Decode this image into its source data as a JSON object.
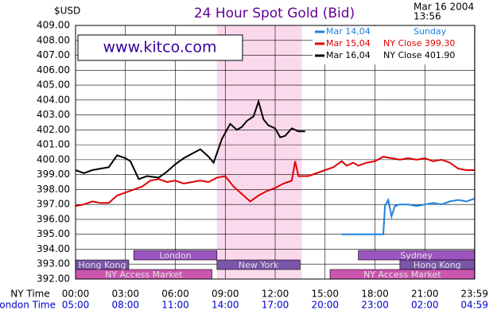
{
  "chart_data": {
    "type": "line",
    "title": "24 Hour Spot Gold (Bid)",
    "y_unit": "$USD",
    "date": "Mar 16 2004",
    "time": "13:56",
    "watermark": "www.kitco.com",
    "x_row_label": "NY Time",
    "x2_row_label": "London Time",
    "xlim": [
      0,
      24
    ],
    "xticks": [
      {
        "value": 0,
        "label": "00:00"
      },
      {
        "value": 3,
        "label": "03:00"
      },
      {
        "value": 6,
        "label": "06:00"
      },
      {
        "value": 9,
        "label": "09:00"
      },
      {
        "value": 12,
        "label": "12:00"
      },
      {
        "value": 15,
        "label": "15:00"
      },
      {
        "value": 18,
        "label": "18:00"
      },
      {
        "value": 21,
        "label": "21:00"
      },
      {
        "value": 23.983,
        "label": "23:59"
      }
    ],
    "x2ticks": [
      {
        "value": 0,
        "label": "05:00"
      },
      {
        "value": 3,
        "label": "08:00"
      },
      {
        "value": 6,
        "label": "11:00"
      },
      {
        "value": 9,
        "label": "14:00"
      },
      {
        "value": 12,
        "label": "17:00"
      },
      {
        "value": 15,
        "label": "20:00"
      },
      {
        "value": 18,
        "label": "23:00"
      },
      {
        "value": 21,
        "label": "02:00"
      },
      {
        "value": 23.983,
        "label": "04:59"
      }
    ],
    "ylim": [
      392,
      409
    ],
    "yticks": [
      {
        "value": 392,
        "label": "392.00"
      },
      {
        "value": 393,
        "label": "393.00"
      },
      {
        "value": 394,
        "label": "394.00"
      },
      {
        "value": 395,
        "label": "395.00"
      },
      {
        "value": 396,
        "label": "396.00"
      },
      {
        "value": 397,
        "label": "397.00"
      },
      {
        "value": 398,
        "label": "398.00"
      },
      {
        "value": 399,
        "label": "399.00"
      },
      {
        "value": 400,
        "label": "400.00"
      },
      {
        "value": 401,
        "label": "401.00"
      },
      {
        "value": 402,
        "label": "402.00"
      },
      {
        "value": 403,
        "label": "403.00"
      },
      {
        "value": 404,
        "label": "404.00"
      },
      {
        "value": 405,
        "label": "405.00"
      },
      {
        "value": 406,
        "label": "406.00"
      },
      {
        "value": 407,
        "label": "407.00"
      },
      {
        "value": 408,
        "label": "408.00"
      },
      {
        "value": 409,
        "label": "409.00"
      }
    ],
    "grid": true,
    "shaded_span": [
      8.5,
      13.6
    ],
    "shaded_color": "#fbd9ec",
    "series": [
      {
        "name": "Mar 14,04",
        "note": "Sunday",
        "color": "#1e7fe0",
        "x": [
          16,
          17,
          18,
          18.5,
          18.6,
          18.8,
          19.0,
          19.2,
          19.5,
          20,
          20.5,
          21,
          21.5,
          22,
          22.5,
          23,
          23.5,
          24
        ],
        "values": [
          395.0,
          395.0,
          395.0,
          395.0,
          396.9,
          397.3,
          396.2,
          396.9,
          397.0,
          397.0,
          396.9,
          397.0,
          397.1,
          397.0,
          397.2,
          397.3,
          397.2,
          397.4
        ]
      },
      {
        "name": "Mar 15,04",
        "note": "NY Close 399.30",
        "color": "#e00000",
        "x": [
          0,
          0.5,
          1,
          1.5,
          2,
          2.5,
          3,
          3.5,
          4,
          4.5,
          5,
          5.5,
          6,
          6.5,
          7,
          7.5,
          8,
          8.5,
          9,
          9.5,
          10,
          10.5,
          11,
          11.5,
          12,
          12.5,
          13,
          13.2,
          13.4,
          14,
          15,
          15.5,
          16,
          16.3,
          16.7,
          17,
          17.5,
          18,
          18.5,
          19,
          19.5,
          20,
          20.5,
          21,
          21.5,
          22,
          22.5,
          23,
          23.5,
          24
        ],
        "values": [
          396.9,
          397.0,
          397.2,
          397.1,
          397.1,
          397.6,
          397.8,
          398.0,
          398.2,
          398.6,
          398.7,
          398.5,
          398.6,
          398.4,
          398.5,
          398.6,
          398.5,
          398.8,
          398.9,
          398.2,
          397.7,
          397.2,
          397.6,
          397.9,
          398.1,
          398.4,
          398.6,
          399.9,
          398.9,
          398.9,
          399.3,
          399.5,
          399.9,
          399.6,
          399.8,
          399.6,
          399.8,
          399.9,
          400.2,
          400.1,
          400.0,
          400.1,
          400.0,
          400.1,
          399.9,
          400.0,
          399.8,
          399.4,
          399.3,
          399.3
        ]
      },
      {
        "name": "Mar 16,04",
        "note": "NY Close 401.90",
        "color": "#000000",
        "x": [
          0,
          0.5,
          1,
          1.5,
          2,
          2.5,
          3,
          3.3,
          3.8,
          4.3,
          5,
          5.5,
          6,
          6.5,
          7,
          7.5,
          8,
          8.3,
          8.8,
          9.3,
          9.7,
          10,
          10.3,
          10.7,
          11,
          11.3,
          11.6,
          12,
          12.3,
          12.6,
          13,
          13.4,
          13.8
        ],
        "values": [
          399.3,
          399.1,
          399.3,
          399.4,
          399.5,
          400.3,
          400.1,
          399.9,
          398.7,
          398.9,
          398.8,
          399.2,
          399.7,
          400.1,
          400.4,
          400.7,
          400.2,
          399.8,
          401.4,
          402.4,
          402.0,
          402.2,
          402.6,
          402.9,
          403.9,
          402.7,
          402.3,
          402.1,
          401.5,
          401.6,
          402.1,
          401.9,
          401.9
        ]
      }
    ],
    "sessions": [
      [
        {
          "name": "London",
          "start": 3.5,
          "end": 8.5,
          "color": "#9a55c0"
        },
        {
          "name": "Sydney",
          "start": 17.0,
          "end": 23.983,
          "color": "#9a55c0"
        }
      ],
      [
        {
          "name": "Hong Kong",
          "start": 0,
          "end": 3.2,
          "color": "#7a55a8"
        },
        {
          "name": "New York",
          "start": 8.5,
          "end": 13.5,
          "color": "#7a55a8"
        },
        {
          "name": "Hong Kong",
          "start": 19.5,
          "end": 23.983,
          "color": "#7a55a8"
        }
      ],
      [
        {
          "name": "NY Access Market",
          "start": 0,
          "end": 8.2,
          "color": "#cc55b0"
        },
        {
          "name": "NY Access Market",
          "start": 15.3,
          "end": 23.983,
          "color": "#cc55b0"
        }
      ]
    ]
  }
}
